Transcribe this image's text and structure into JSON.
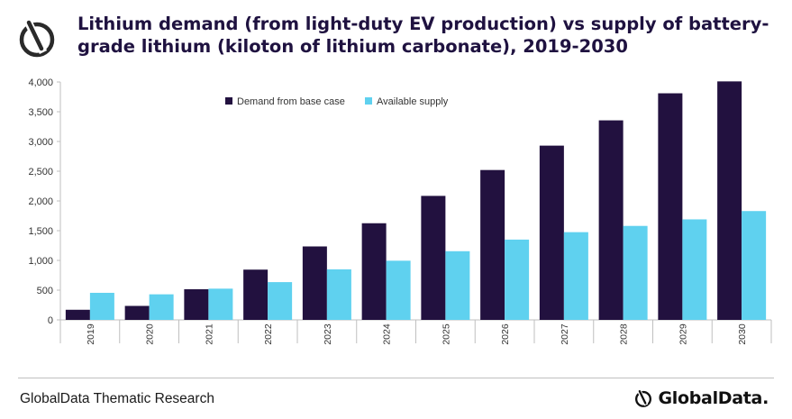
{
  "header": {
    "title": "Lithium demand (from light-duty EV production) vs supply of battery-grade lithium (kiloton of lithium carbonate), 2019-2030",
    "logo_icon": "globaldata-logo-icon"
  },
  "footer": {
    "source": "GlobalData Thematic Research",
    "brand": "GlobalData."
  },
  "colors": {
    "demand": "#22113f",
    "supply": "#5fd1ef",
    "title": "#1f1240"
  },
  "chart_data": {
    "type": "bar",
    "categories": [
      "2019",
      "2020",
      "2021",
      "2022",
      "2023",
      "2024",
      "2025",
      "2026",
      "2027",
      "2028",
      "2029",
      "2030"
    ],
    "series": [
      {
        "name": "Demand from base case",
        "values": [
          170,
          235,
          515,
          845,
          1235,
          1625,
          2085,
          2520,
          2930,
          3355,
          3810,
          4010
        ]
      },
      {
        "name": "Available supply",
        "values": [
          455,
          430,
          525,
          635,
          850,
          995,
          1155,
          1350,
          1475,
          1580,
          1690,
          1830
        ]
      }
    ],
    "ylim": [
      0,
      4000
    ],
    "yticks": [
      "0",
      "500",
      "1,000",
      "1,500",
      "2,000",
      "2,500",
      "3,000",
      "3,500",
      "4,000"
    ],
    "legend_position": "top-left",
    "grid": false
  }
}
